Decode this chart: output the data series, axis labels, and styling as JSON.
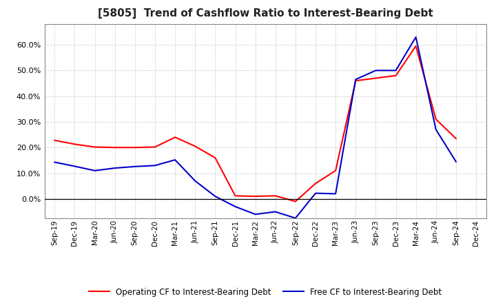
{
  "title": "[5805]  Trend of Cashflow Ratio to Interest-Bearing Debt",
  "x_labels": [
    "Sep-19",
    "Dec-19",
    "Mar-20",
    "Jun-20",
    "Sep-20",
    "Dec-20",
    "Mar-21",
    "Jun-21",
    "Sep-21",
    "Dec-21",
    "Mar-22",
    "Jun-22",
    "Sep-22",
    "Dec-22",
    "Mar-23",
    "Jun-23",
    "Sep-23",
    "Dec-23",
    "Mar-24",
    "Jun-24",
    "Sep-24",
    "Dec-24"
  ],
  "operating_cf": [
    0.228,
    0.213,
    0.202,
    0.2,
    0.2,
    0.202,
    0.24,
    0.205,
    0.16,
    0.012,
    0.01,
    0.012,
    -0.01,
    0.06,
    0.11,
    0.46,
    0.47,
    0.48,
    0.595,
    0.31,
    0.235,
    null
  ],
  "free_cf": [
    0.143,
    0.127,
    0.11,
    0.12,
    0.126,
    0.13,
    0.152,
    0.07,
    0.01,
    -0.03,
    -0.06,
    -0.05,
    -0.075,
    0.022,
    0.02,
    0.465,
    0.5,
    0.5,
    0.63,
    0.27,
    0.145,
    null
  ],
  "operating_color": "#FF0000",
  "free_color": "#0000CC",
  "background_color": "#FFFFFF",
  "plot_bg_color": "#FFFFFF",
  "grid_color": "#AAAAAA",
  "ylim": [
    -0.075,
    0.68
  ],
  "yticks": [
    0.0,
    0.1,
    0.2,
    0.3,
    0.4,
    0.5,
    0.6
  ],
  "legend_op": "Operating CF to Interest-Bearing Debt",
  "legend_free": "Free CF to Interest-Bearing Debt",
  "title_fontsize": 11,
  "tick_fontsize": 7.5,
  "legend_fontsize": 8.5
}
